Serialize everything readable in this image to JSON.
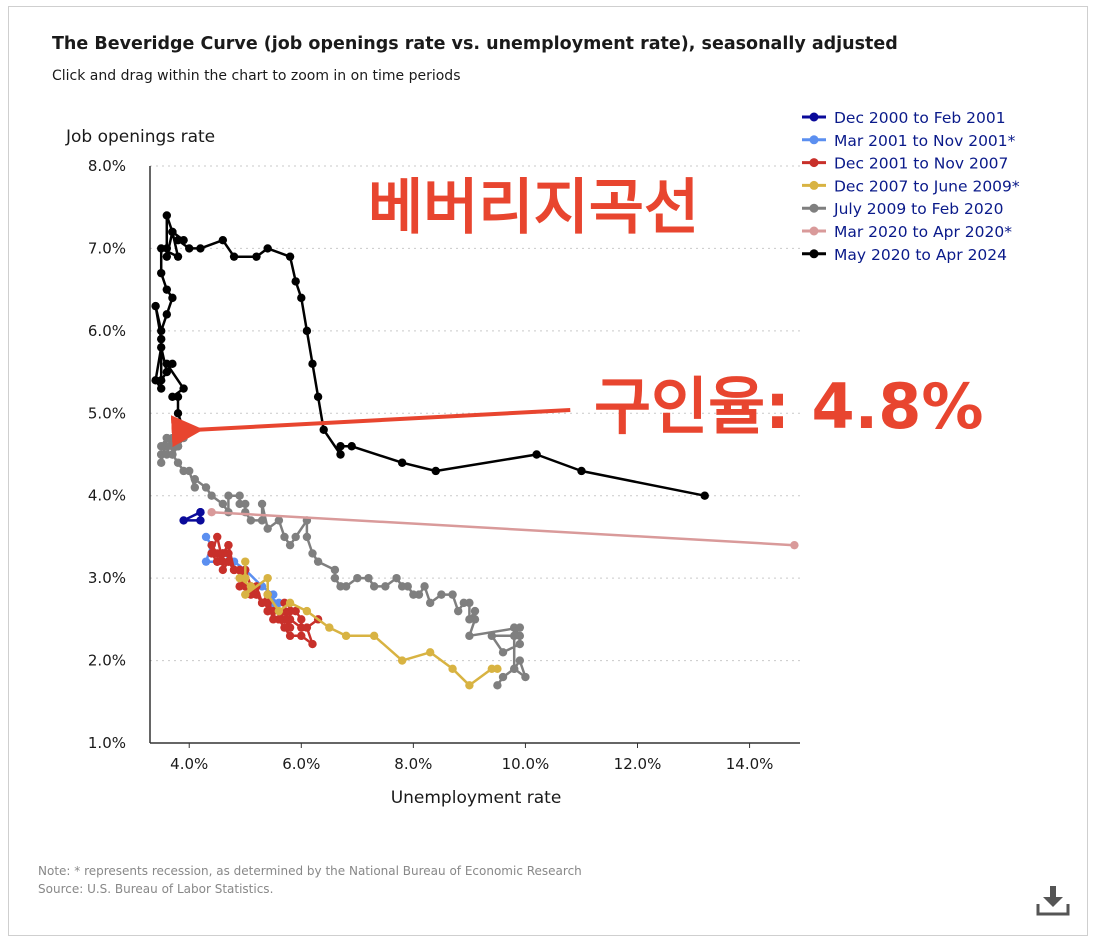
{
  "header": {
    "title": "The Beveridge Curve (job openings rate vs. unemployment rate), seasonally adjusted",
    "subtitle": "Click and drag within the chart to zoom in on time periods"
  },
  "footer": {
    "note": "Note: * represents recession, as determined by the National Bureau of Economic Research",
    "source": "Source: U.S. Bureau of Labor Statistics."
  },
  "icons": {
    "download": "download-icon"
  },
  "overlay": {
    "title_korean": "베버리지곡선",
    "annotation": "구인율: 4.8%",
    "color": "#e8452f"
  },
  "chart_data": {
    "type": "line",
    "xlabel": "Unemployment rate",
    "ylabel": "Job openings rate",
    "xlim": [
      3.3,
      14.9
    ],
    "ylim": [
      1.0,
      8.0
    ],
    "x_ticks": [
      "4.0%",
      "6.0%",
      "8.0%",
      "10.0%",
      "12.0%",
      "14.0%"
    ],
    "y_ticks": [
      "1.0%",
      "2.0%",
      "3.0%",
      "4.0%",
      "5.0%",
      "6.0%",
      "7.0%",
      "8.0%"
    ],
    "grid": "horizontal dotted",
    "legend_position": "top-right",
    "annotation_arrow": {
      "from": [
        10.8,
        5.04
      ],
      "to": [
        3.9,
        4.8
      ]
    },
    "series": [
      {
        "name": "Dec 2000 to Feb 2001",
        "color": "#0a0a9a",
        "x": [
          4.2,
          4.2,
          3.9,
          4.2
        ],
        "y": [
          3.8,
          3.7,
          3.7,
          3.8
        ]
      },
      {
        "name": "Mar 2001 to Nov 2001*",
        "color": "#5b8ff0",
        "x": [
          4.3,
          4.4,
          4.3,
          4.5,
          4.6,
          4.8,
          5.0,
          5.3,
          5.5,
          5.5,
          5.6
        ],
        "y": [
          3.5,
          3.4,
          3.2,
          3.2,
          3.3,
          3.2,
          3.1,
          2.9,
          2.8,
          2.7,
          2.7
        ]
      },
      {
        "name": "Dec 2001 to Nov 2007",
        "color": "#c8302a",
        "x": [
          5.7,
          5.9,
          6.0,
          6.0,
          5.8,
          5.8,
          5.7,
          5.8,
          5.7,
          5.6,
          5.4,
          5.4,
          5.5,
          5.4,
          5.3,
          5.2,
          5.1,
          5.0,
          5.0,
          4.9,
          4.8,
          4.7,
          4.6,
          4.6,
          4.7,
          4.6,
          4.5,
          4.4,
          4.4,
          4.5,
          4.6,
          4.5,
          4.4,
          4.5,
          4.6,
          4.7,
          4.8,
          4.7,
          4.7,
          4.8,
          5.0,
          4.9,
          5.0,
          5.1,
          5.2,
          5.3,
          5.5,
          5.4,
          5.6,
          5.7,
          5.8,
          6.0,
          6.2,
          6.1,
          6.3
        ],
        "y": [
          2.7,
          2.6,
          2.5,
          2.4,
          2.5,
          2.6,
          2.5,
          2.4,
          2.6,
          2.5,
          2.6,
          2.7,
          2.5,
          2.8,
          2.7,
          2.9,
          2.8,
          2.9,
          3.0,
          3.1,
          3.1,
          3.2,
          3.1,
          3.3,
          3.4,
          3.3,
          3.2,
          3.3,
          3.4,
          3.3,
          3.2,
          3.5,
          3.3,
          3.2,
          3.3,
          3.4,
          3.1,
          3.3,
          3.2,
          3.1,
          3.0,
          2.9,
          3.1,
          2.9,
          2.8,
          2.7,
          2.6,
          2.6,
          2.5,
          2.4,
          2.3,
          2.3,
          2.2,
          2.4,
          2.5
        ]
      },
      {
        "name": "Dec 2007 to June 2009*",
        "color": "#d8b342",
        "x": [
          5.0,
          5.0,
          4.9,
          5.1,
          5.0,
          5.4,
          5.4,
          5.6,
          5.8,
          6.1,
          6.5,
          6.8,
          7.3,
          7.8,
          8.3,
          8.7,
          9.0,
          9.4,
          9.5
        ],
        "y": [
          3.2,
          3.0,
          3.0,
          2.9,
          2.8,
          3.0,
          2.8,
          2.6,
          2.7,
          2.6,
          2.4,
          2.3,
          2.3,
          2.0,
          2.1,
          1.9,
          1.7,
          1.9,
          1.9
        ]
      },
      {
        "name": "July 2009 to Feb 2020",
        "color": "#7f7f7f",
        "x": [
          9.5,
          9.6,
          9.8,
          10.0,
          9.9,
          9.8,
          9.8,
          9.9,
          9.9,
          9.6,
          9.4,
          9.8,
          9.9,
          9.0,
          9.1,
          9.1,
          9.0,
          9.0,
          8.9,
          8.8,
          8.7,
          8.5,
          8.3,
          8.2,
          8.1,
          8.0,
          7.9,
          7.8,
          7.7,
          7.5,
          7.3,
          7.2,
          7.0,
          6.8,
          6.7,
          6.6,
          6.6,
          6.3,
          6.2,
          6.1,
          6.1,
          5.9,
          5.8,
          5.7,
          5.6,
          5.4,
          5.3,
          5.3,
          5.1,
          5.0,
          5.0,
          4.9,
          4.9,
          4.7,
          4.7,
          4.6,
          4.4,
          4.3,
          4.1,
          4.1,
          4.0,
          3.9,
          3.8,
          3.7,
          3.7,
          3.6,
          3.5,
          3.5,
          3.6,
          3.5,
          3.6,
          3.7,
          3.8,
          3.9,
          3.7,
          3.8,
          3.8,
          3.9,
          3.6,
          3.5
        ],
        "y": [
          1.7,
          1.8,
          1.9,
          1.8,
          2.0,
          1.9,
          2.4,
          2.3,
          2.2,
          2.1,
          2.3,
          2.3,
          2.4,
          2.3,
          2.5,
          2.6,
          2.5,
          2.7,
          2.7,
          2.6,
          2.8,
          2.8,
          2.7,
          2.9,
          2.8,
          2.8,
          2.9,
          2.9,
          3.0,
          2.9,
          2.9,
          3.0,
          3.0,
          2.9,
          2.9,
          3.0,
          3.1,
          3.2,
          3.3,
          3.5,
          3.7,
          3.5,
          3.4,
          3.5,
          3.7,
          3.6,
          3.9,
          3.7,
          3.7,
          3.8,
          3.9,
          3.9,
          4.0,
          4.0,
          3.8,
          3.9,
          4.0,
          4.1,
          4.2,
          4.1,
          4.3,
          4.3,
          4.4,
          4.5,
          4.6,
          4.7,
          4.4,
          4.5,
          4.6,
          4.5,
          4.5,
          4.7,
          4.6,
          4.8,
          4.5,
          4.6,
          4.6,
          4.7,
          4.7,
          4.6
        ]
      },
      {
        "name": "Mar 2020 to Apr 2020*",
        "color": "#d99a9a",
        "x": [
          4.4,
          14.8
        ],
        "y": [
          3.8,
          3.4
        ]
      },
      {
        "name": "May 2020 to Apr 2024",
        "color": "#000000",
        "x": [
          13.2,
          11.0,
          10.2,
          8.4,
          7.8,
          6.9,
          6.7,
          6.7,
          6.4,
          6.3,
          6.2,
          6.1,
          6.0,
          5.9,
          5.8,
          5.4,
          5.2,
          4.8,
          4.6,
          4.2,
          4.0,
          3.8,
          3.9,
          3.7,
          3.6,
          3.6,
          3.6,
          3.7,
          3.8,
          3.5,
          3.5,
          3.6,
          3.7,
          3.6,
          3.5,
          3.4,
          3.5,
          3.5,
          3.4,
          3.5,
          3.6,
          3.5,
          3.7,
          3.6,
          3.9,
          3.7,
          3.8,
          3.8,
          3.9
        ],
        "y": [
          4.0,
          4.3,
          4.5,
          4.3,
          4.4,
          4.6,
          4.6,
          4.5,
          4.8,
          5.2,
          5.6,
          6.0,
          6.4,
          6.6,
          6.9,
          7.0,
          6.9,
          6.9,
          7.1,
          7.0,
          7.0,
          7.1,
          7.1,
          7.2,
          7.4,
          7.0,
          6.9,
          7.2,
          6.9,
          7.0,
          6.7,
          6.5,
          6.4,
          6.2,
          6.0,
          6.3,
          5.9,
          5.3,
          5.4,
          5.8,
          5.5,
          5.4,
          5.6,
          5.6,
          5.3,
          5.2,
          5.2,
          5.0,
          4.8
        ]
      }
    ]
  }
}
